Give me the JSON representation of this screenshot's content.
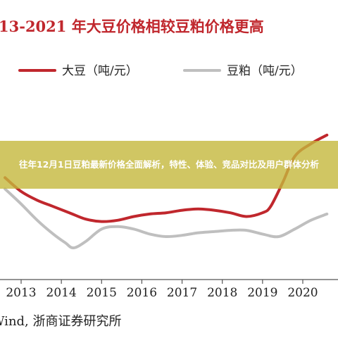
{
  "overlay": {
    "text": "往年12月1日豆粕最新价格全面解析，特性、体验、竞品对比及用户群体分析"
  },
  "source": {
    "text": "Wind, 浙商证券研究所"
  },
  "chart_data": {
    "type": "line",
    "title": "13-2021 年大豆价格相较豆粕价格更高",
    "x": [
      2013,
      2014,
      2015,
      2016,
      2017,
      2018,
      2019,
      2020
    ],
    "x_tick_labels": [
      "2013",
      "2014",
      "2015",
      "2016",
      "2017",
      "2018",
      "2019",
      "2020"
    ],
    "ylim": [
      0,
      100
    ],
    "grid": false,
    "legend_position": "top",
    "series": [
      {
        "name": "大豆（吨/元）",
        "color": "#c0272d",
        "points": [
          [
            2012.6,
            56
          ],
          [
            2013.0,
            45
          ],
          [
            2013.4,
            38
          ],
          [
            2013.8,
            33
          ],
          [
            2014.2,
            28
          ],
          [
            2014.6,
            23
          ],
          [
            2015.0,
            21
          ],
          [
            2015.4,
            22
          ],
          [
            2015.8,
            25
          ],
          [
            2016.2,
            27
          ],
          [
            2016.6,
            28
          ],
          [
            2017.0,
            30
          ],
          [
            2017.4,
            31
          ],
          [
            2017.8,
            30
          ],
          [
            2018.2,
            28
          ],
          [
            2018.6,
            25
          ],
          [
            2019.0,
            28
          ],
          [
            2019.2,
            33
          ],
          [
            2019.5,
            52
          ],
          [
            2019.8,
            73
          ],
          [
            2020.2,
            83
          ],
          [
            2020.6,
            90
          ]
        ]
      },
      {
        "name": "豆粕（吨/元）",
        "color": "#bfbfbf",
        "points": [
          [
            2012.6,
            47
          ],
          [
            2013.0,
            35
          ],
          [
            2013.4,
            22
          ],
          [
            2013.8,
            11
          ],
          [
            2014.1,
            4
          ],
          [
            2014.3,
            0
          ],
          [
            2014.6,
            5
          ],
          [
            2015.0,
            15
          ],
          [
            2015.4,
            17
          ],
          [
            2015.8,
            15
          ],
          [
            2016.2,
            11
          ],
          [
            2016.6,
            9
          ],
          [
            2017.0,
            10
          ],
          [
            2017.4,
            12
          ],
          [
            2017.8,
            13
          ],
          [
            2018.2,
            14
          ],
          [
            2018.6,
            14
          ],
          [
            2019.0,
            11
          ],
          [
            2019.4,
            9
          ],
          [
            2019.8,
            15
          ],
          [
            2020.2,
            22
          ],
          [
            2020.6,
            27
          ]
        ]
      }
    ]
  }
}
